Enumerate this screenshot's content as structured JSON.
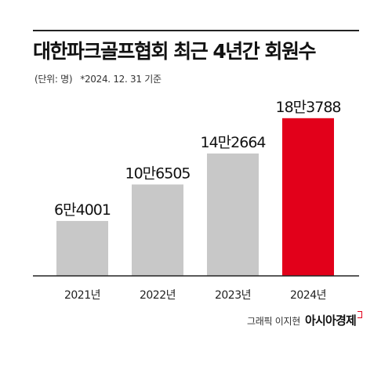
{
  "header": {
    "title": "대한파크골프협회 최근 4년간 회원수",
    "unit": "(단위: 명)",
    "note": "*2024. 12. 31 기준"
  },
  "credit": {
    "author": "그래픽 이지현",
    "brand": "아시아경제"
  },
  "colors": {
    "bar_default": "#c8c8c8",
    "bar_highlight": "#e2001a",
    "axis": "#222222",
    "text": "#111111"
  },
  "chart_data": {
    "type": "bar",
    "title": "대한파크골프협회 최근 4년간 회원수",
    "xlabel": "",
    "ylabel": "",
    "categories": [
      "2021년",
      "2022년",
      "2023년",
      "2024년"
    ],
    "values": [
      64001,
      106505,
      142664,
      183788
    ],
    "value_labels": [
      "6만4001",
      "10만6505",
      "14만2664",
      "18만3788"
    ],
    "highlight_index": 3,
    "ylim": [
      0,
      190000
    ],
    "grid": false,
    "legend": "none"
  }
}
